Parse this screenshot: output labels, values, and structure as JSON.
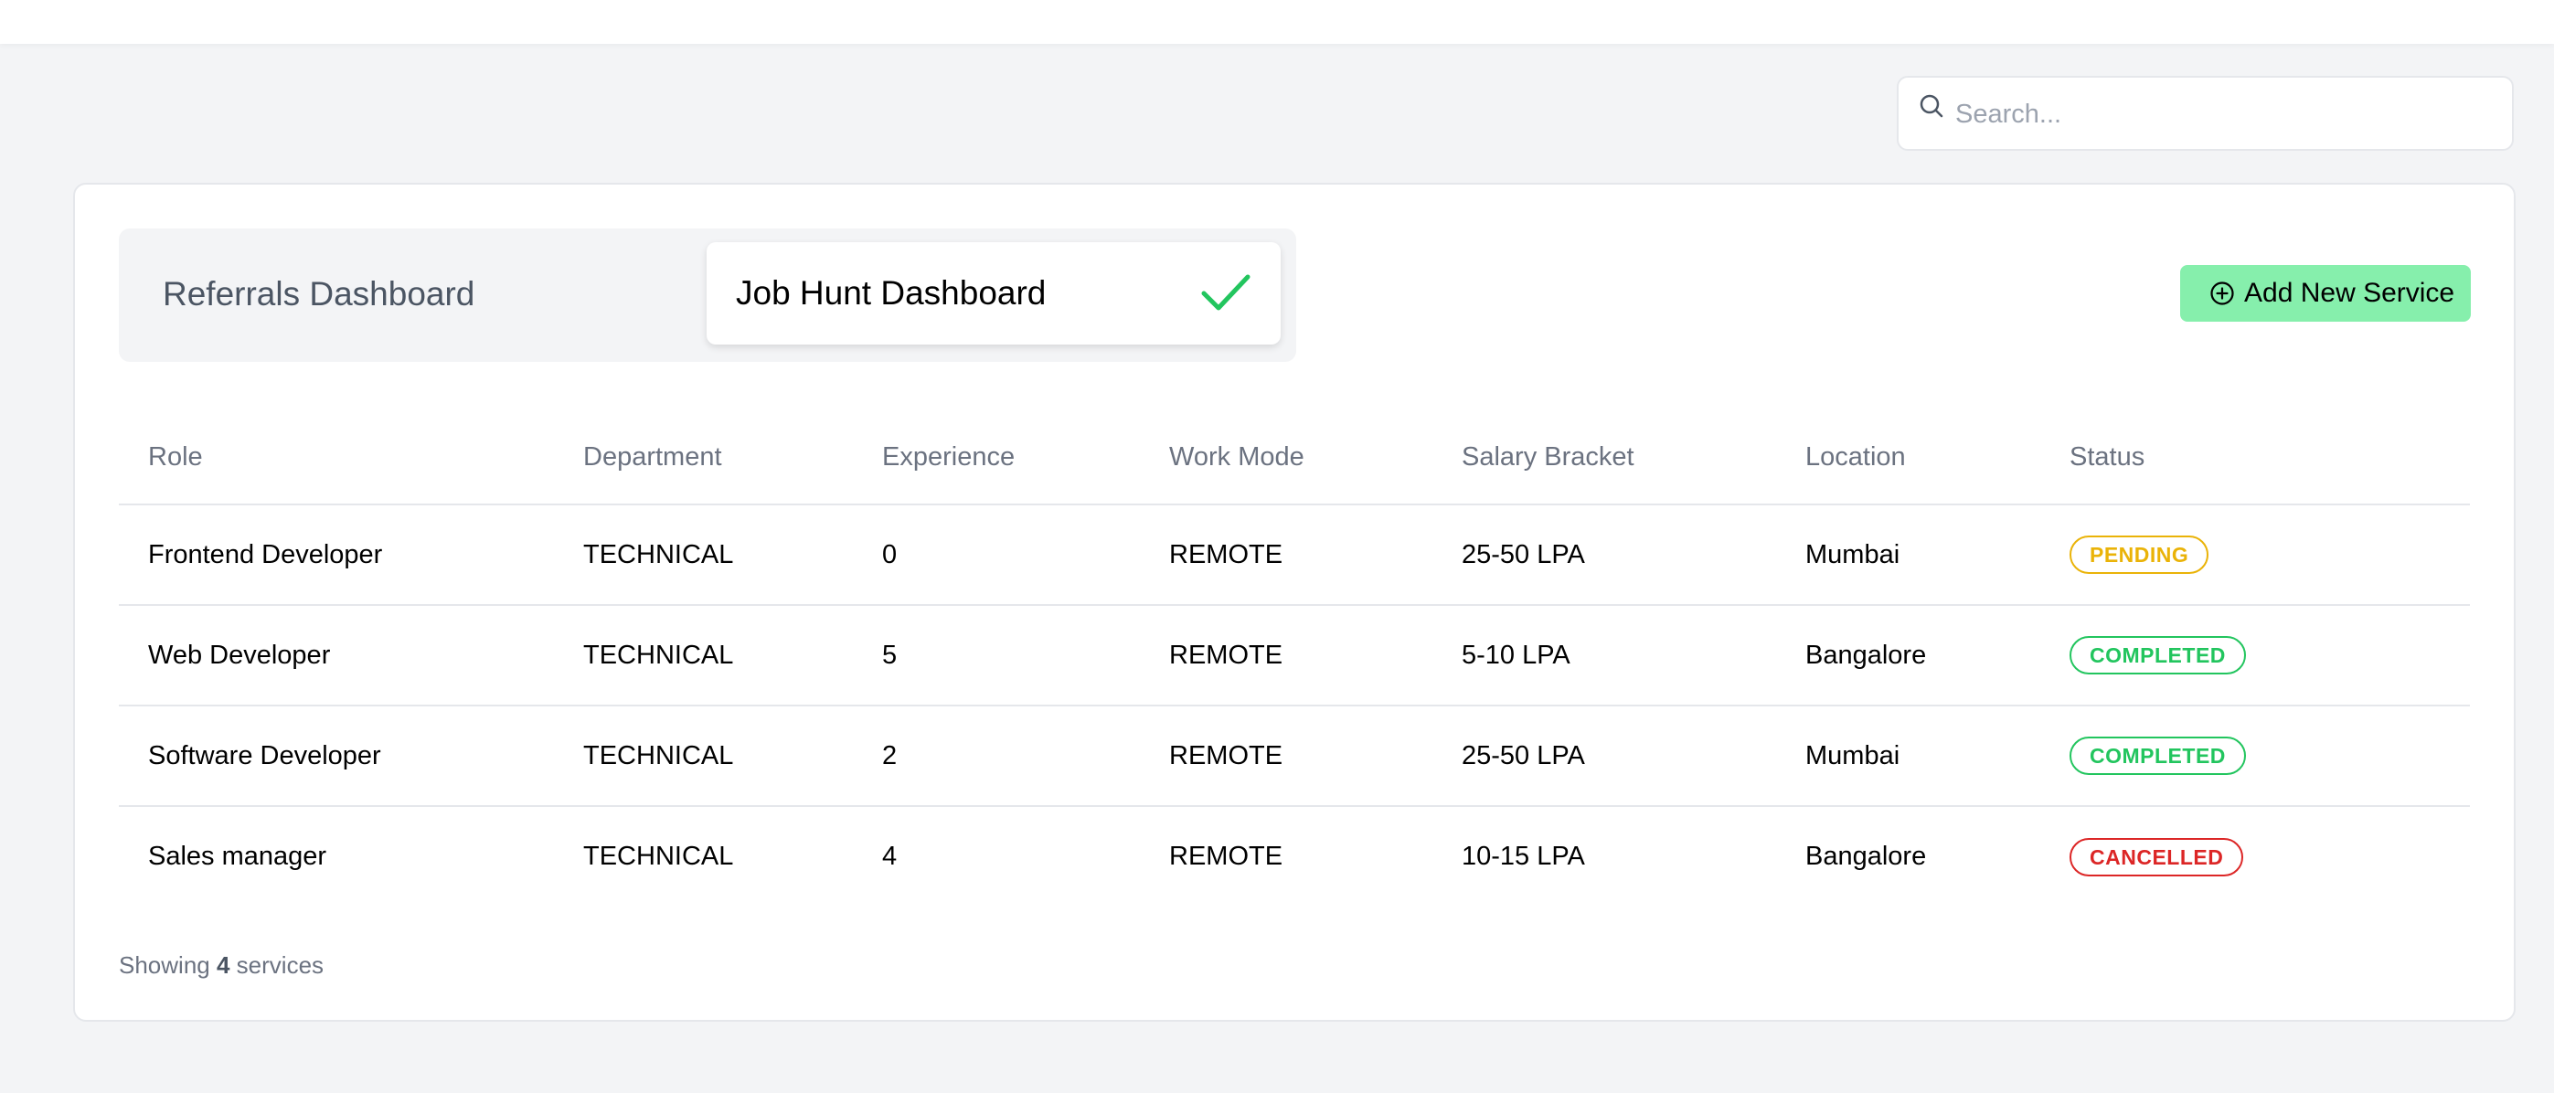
{
  "search": {
    "placeholder": "Search..."
  },
  "tabs": {
    "referrals": "Referrals Dashboard",
    "job_hunt": "Job Hunt Dashboard",
    "active": "job_hunt"
  },
  "add_button": {
    "label": "Add New Service"
  },
  "table": {
    "headers": [
      "Role",
      "Department",
      "Experience",
      "Work Mode",
      "Salary Bracket",
      "Location",
      "Status"
    ],
    "rows": [
      {
        "role": "Frontend Developer",
        "department": "TECHNICAL",
        "experience": "0",
        "work_mode": "REMOTE",
        "salary": "25-50 LPA",
        "location": "Mumbai",
        "status": "PENDING"
      },
      {
        "role": "Web Developer",
        "department": "TECHNICAL",
        "experience": "5",
        "work_mode": "REMOTE",
        "salary": "5-10 LPA",
        "location": "Bangalore",
        "status": "COMPLETED"
      },
      {
        "role": "Software Developer",
        "department": "TECHNICAL",
        "experience": "2",
        "work_mode": "REMOTE",
        "salary": "25-50 LPA",
        "location": "Mumbai",
        "status": "COMPLETED"
      },
      {
        "role": "Sales manager",
        "department": "TECHNICAL",
        "experience": "4",
        "work_mode": "REMOTE",
        "salary": "10-15 LPA",
        "location": "Bangalore",
        "status": "CANCELLED"
      }
    ]
  },
  "footer": {
    "prefix": "Showing",
    "count": "4",
    "suffix": "services"
  },
  "icons": {
    "search": "search-icon",
    "check": "check-icon",
    "add": "plus-circle-icon"
  },
  "colors": {
    "accent_button": "#86efac",
    "pending": "#eab308",
    "completed": "#22c55e",
    "cancelled": "#dc2626",
    "check": "#22c55e"
  }
}
